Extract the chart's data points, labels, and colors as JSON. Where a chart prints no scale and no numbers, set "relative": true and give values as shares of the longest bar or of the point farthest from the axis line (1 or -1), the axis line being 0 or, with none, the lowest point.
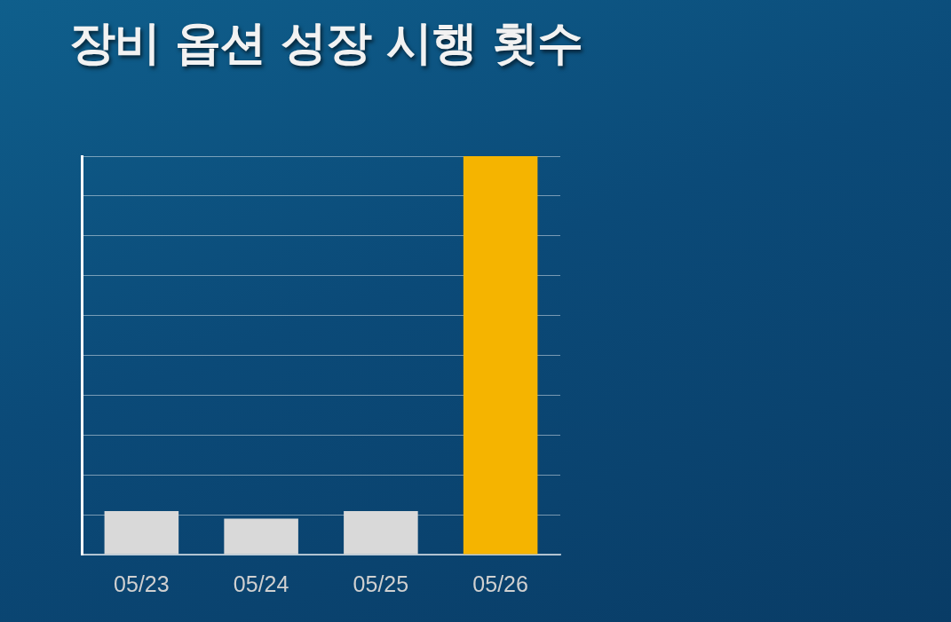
{
  "chart_data": {
    "type": "bar",
    "title": "장비 옵션 성장 시행 횟수",
    "categories": [
      "05/23",
      "05/24",
      "05/25",
      "05/26"
    ],
    "values": [
      0.109,
      0.09,
      0.109,
      1
    ],
    "colors": [
      "#d9d9d9",
      "#d9d9d9",
      "#d9d9d9",
      "#f5b400"
    ],
    "relative": true,
    "grid": "y",
    "legend": false
  }
}
